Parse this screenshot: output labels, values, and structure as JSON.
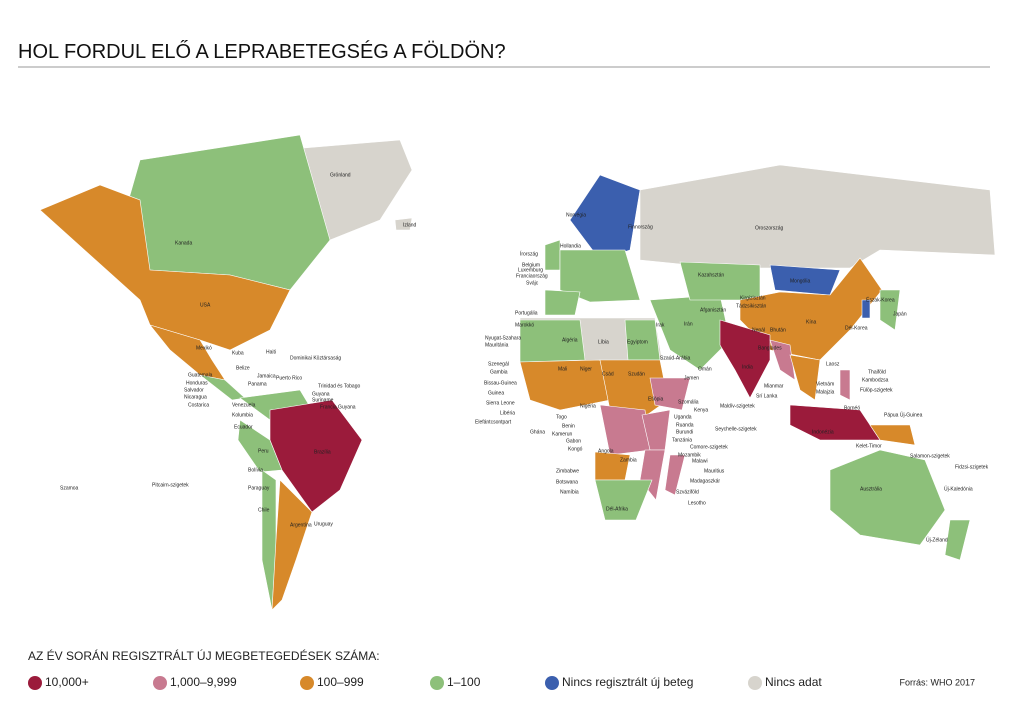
{
  "title": "HOL FORDUL ELŐ A LEPRABETEGSÉG A FÖLDÖN?",
  "legend": {
    "title": "AZ ÉV SORÁN REGISZTRÁLT ÚJ MEGBETEGEDÉSEK SZÁMA:",
    "items": [
      {
        "label": "10,000+",
        "color": "#9b1b3b"
      },
      {
        "label": "1,000–9,999",
        "color": "#c87a90"
      },
      {
        "label": "100–999",
        "color": "#d7892a"
      },
      {
        "label": "1–100",
        "color": "#8dc07a"
      },
      {
        "label": "Nincs regisztrált új beteg",
        "color": "#3b5fae"
      },
      {
        "label": "Nincs adat",
        "color": "#d7d4cd"
      }
    ]
  },
  "source": "Forrás: WHO 2017",
  "countries": [
    {
      "name": "Grönland",
      "category": 5
    },
    {
      "name": "Izland",
      "category": 5
    },
    {
      "name": "Kanada",
      "category": 3
    },
    {
      "name": "USA",
      "category": 2
    },
    {
      "name": "Mexikó",
      "category": 2
    },
    {
      "name": "Kuba",
      "category": 3
    },
    {
      "name": "Haiti",
      "category": 3
    },
    {
      "name": "Dominikai Köztársaság",
      "category": 2
    },
    {
      "name": "Belize",
      "category": 3
    },
    {
      "name": "Jamaica",
      "category": 3
    },
    {
      "name": "Panama",
      "category": 3
    },
    {
      "name": "Puerto Rico",
      "category": 3
    },
    {
      "name": "Guatemala",
      "category": 3
    },
    {
      "name": "Honduras",
      "category": 3
    },
    {
      "name": "Salvador",
      "category": 3
    },
    {
      "name": "Nicaragua",
      "category": 3
    },
    {
      "name": "Costarica",
      "category": 3
    },
    {
      "name": "Trinidad és Tobago",
      "category": 3
    },
    {
      "name": "Guyana",
      "category": 3
    },
    {
      "name": "Suriname",
      "category": 3
    },
    {
      "name": "Francia Guyana",
      "category": 3
    },
    {
      "name": "Venezuela",
      "category": 3
    },
    {
      "name": "Kolumbia",
      "category": 2
    },
    {
      "name": "Ecuador",
      "category": 3
    },
    {
      "name": "Peru",
      "category": 3
    },
    {
      "name": "Brazília",
      "category": 0
    },
    {
      "name": "Bolívia",
      "category": 3
    },
    {
      "name": "Paraguay",
      "category": 2
    },
    {
      "name": "Chile",
      "category": 3
    },
    {
      "name": "Argentína",
      "category": 2
    },
    {
      "name": "Uruguay",
      "category": 3
    },
    {
      "name": "Szamoa",
      "category": 5
    },
    {
      "name": "Pitcairn-szigetek",
      "category": 5
    },
    {
      "name": "Norvégia",
      "category": 4
    },
    {
      "name": "Finnország",
      "category": 4
    },
    {
      "name": "Oroszország",
      "category": 5
    },
    {
      "name": "Írország",
      "category": 3
    },
    {
      "name": "Hollandia",
      "category": 3
    },
    {
      "name": "Belgium",
      "category": 3
    },
    {
      "name": "Luxemburg",
      "category": 3
    },
    {
      "name": "Franciaország",
      "category": 3
    },
    {
      "name": "Svájc",
      "category": 3
    },
    {
      "name": "Portugália",
      "category": 3
    },
    {
      "name": "Marokkó",
      "category": 3
    },
    {
      "name": "Algéria",
      "category": 3
    },
    {
      "name": "Líbia",
      "category": 5
    },
    {
      "name": "Egyiptom",
      "category": 3
    },
    {
      "name": "Nyugat-Szahara",
      "category": 5
    },
    {
      "name": "Mauritánia",
      "category": 3
    },
    {
      "name": "Mali",
      "category": 2
    },
    {
      "name": "Niger",
      "category": 2
    },
    {
      "name": "Csád",
      "category": 2
    },
    {
      "name": "Szudán",
      "category": 2
    },
    {
      "name": "Szenegál",
      "category": 2
    },
    {
      "name": "Gambia",
      "category": 3
    },
    {
      "name": "Bissau-Guinea",
      "category": 2
    },
    {
      "name": "Guinea",
      "category": 2
    },
    {
      "name": "Sierra Leone",
      "category": 2
    },
    {
      "name": "Libéria",
      "category": 2
    },
    {
      "name": "Elefántcsontpart",
      "category": 2
    },
    {
      "name": "Ghána",
      "category": 2
    },
    {
      "name": "Togo",
      "category": 3
    },
    {
      "name": "Benin",
      "category": 3
    },
    {
      "name": "Nigéria",
      "category": 1
    },
    {
      "name": "Kamerun",
      "category": 2
    },
    {
      "name": "Gabon",
      "category": 3
    },
    {
      "name": "Kongó",
      "category": 3
    },
    {
      "name": "Etiópia",
      "category": 1
    },
    {
      "name": "Szomália",
      "category": 3
    },
    {
      "name": "Kenya",
      "category": 2
    },
    {
      "name": "Uganda",
      "category": 2
    },
    {
      "name": "Ruanda",
      "category": 3
    },
    {
      "name": "Burundi",
      "category": 3
    },
    {
      "name": "Tanzánia",
      "category": 1
    },
    {
      "name": "Angola",
      "category": 2
    },
    {
      "name": "Zambia",
      "category": 2
    },
    {
      "name": "Mozambik",
      "category": 1
    },
    {
      "name": "Malawi",
      "category": 2
    },
    {
      "name": "Madagaszkár",
      "category": 1
    },
    {
      "name": "Zimbabwe",
      "category": 3
    },
    {
      "name": "Botswana",
      "category": 3
    },
    {
      "name": "Namíbia",
      "category": 3
    },
    {
      "name": "Dél-Afrika",
      "category": 3
    },
    {
      "name": "Lesotho",
      "category": 3
    },
    {
      "name": "Szváziföld",
      "category": 3
    },
    {
      "name": "Mauritius",
      "category": 3
    },
    {
      "name": "Seychelle-szigetek",
      "category": 3
    },
    {
      "name": "Comore-szigetek",
      "category": 2
    },
    {
      "name": "Szaúd-Arábia",
      "category": 3
    },
    {
      "name": "Jemen",
      "category": 2
    },
    {
      "name": "Omán",
      "category": 3
    },
    {
      "name": "Irán",
      "category": 3
    },
    {
      "name": "Irak",
      "category": 3
    },
    {
      "name": "Kazahsztán",
      "category": 3
    },
    {
      "name": "Mongólia",
      "category": 4
    },
    {
      "name": "Kína",
      "category": 2
    },
    {
      "name": "India",
      "category": 0
    },
    {
      "name": "Nepál",
      "category": 2
    },
    {
      "name": "Bhután",
      "category": 2
    },
    {
      "name": "Banglades",
      "category": 1
    },
    {
      "name": "Mianmar",
      "category": 1
    },
    {
      "name": "Srí Lanka",
      "category": 2
    },
    {
      "name": "Maldív-szigetek",
      "category": 3
    },
    {
      "name": "Thaiföld",
      "category": 3
    },
    {
      "name": "Vietnám",
      "category": 2
    },
    {
      "name": "Kambodzsa",
      "category": 2
    },
    {
      "name": "Laosz",
      "category": 3
    },
    {
      "name": "Malajzia",
      "category": 3
    },
    {
      "name": "Fülöp-szigetek",
      "category": 1
    },
    {
      "name": "Indonézia",
      "category": 0
    },
    {
      "name": "Kelet-Timor",
      "category": 2
    },
    {
      "name": "Pápua Új-Guinea",
      "category": 2
    },
    {
      "name": "Japán",
      "category": 3
    },
    {
      "name": "Ausztrália",
      "category": 3
    },
    {
      "name": "Új-Zéland",
      "category": 3
    },
    {
      "name": "Salamon-szigetek",
      "category": 3
    },
    {
      "name": "Fidzsi-szigetek",
      "category": 3
    },
    {
      "name": "Új-Kaledónia",
      "category": 3
    },
    {
      "name": "Afganisztán",
      "category": 2
    },
    {
      "name": "Kirgizisztán",
      "category": 3
    },
    {
      "name": "Tádzsikisztán",
      "category": 3
    },
    {
      "name": "Dél-Korea",
      "category": 4
    },
    {
      "name": "Észak-Korea",
      "category": 5
    },
    {
      "name": "Bornéó",
      "category": 3
    }
  ]
}
